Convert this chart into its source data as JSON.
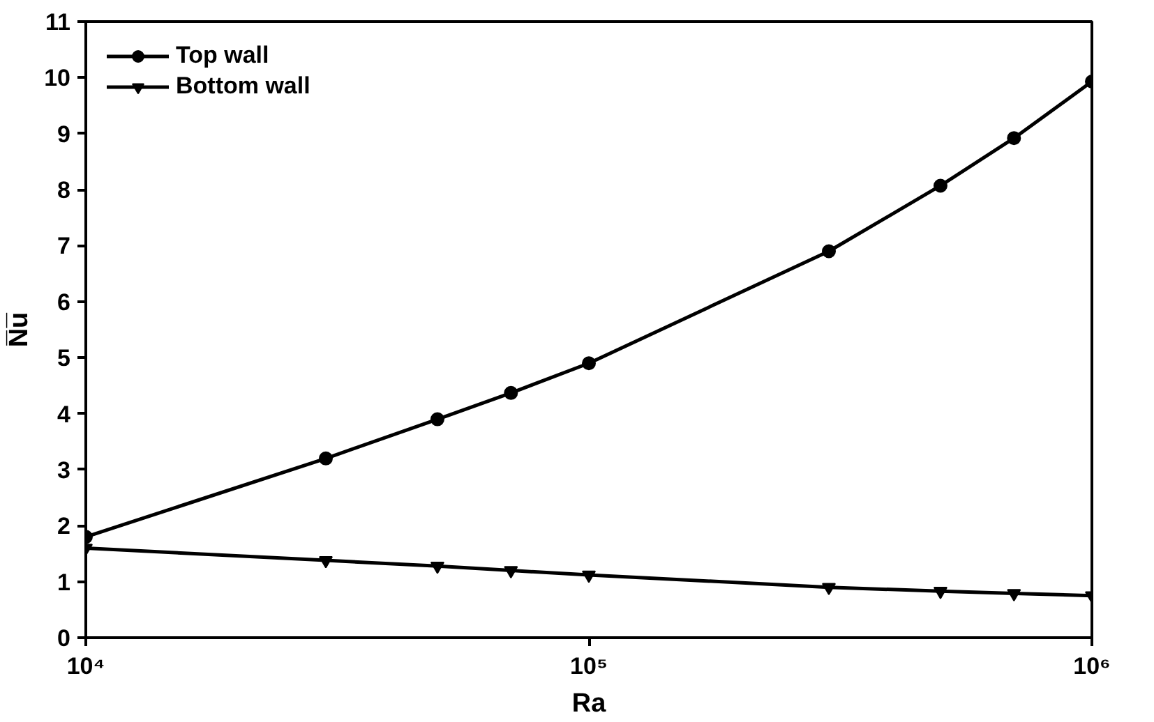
{
  "chart_data": {
    "type": "line",
    "xlabel": "Ra",
    "ylabel": "N̅u̅",
    "x": [
      10000,
      30000,
      50000,
      70000,
      100000,
      300000,
      500000,
      700000,
      1000000
    ],
    "series": [
      {
        "name": "Top wall",
        "color": "#000000",
        "marker": "circle",
        "values": [
          1.8,
          3.2,
          3.9,
          4.37,
          4.9,
          6.9,
          8.07,
          8.92,
          9.93
        ]
      },
      {
        "name": "Bottom wall",
        "color": "#000000",
        "marker": "triangle",
        "values": [
          1.6,
          1.38,
          1.28,
          1.2,
          1.12,
          0.9,
          0.83,
          0.79,
          0.75
        ]
      }
    ],
    "log": "x",
    "xlim": [
      10000,
      1000000
    ],
    "xticks": [
      {
        "value": 10000,
        "label": "10⁴"
      },
      {
        "value": 100000,
        "label": "10⁵"
      },
      {
        "value": 1000000,
        "label": "10⁶"
      }
    ],
    "ylim": [
      0,
      11
    ],
    "yticks": [
      0,
      1,
      2,
      3,
      4,
      5,
      6,
      7,
      8,
      9,
      10,
      11
    ],
    "grid": false,
    "legend": "top left",
    "line_style": "solid"
  }
}
